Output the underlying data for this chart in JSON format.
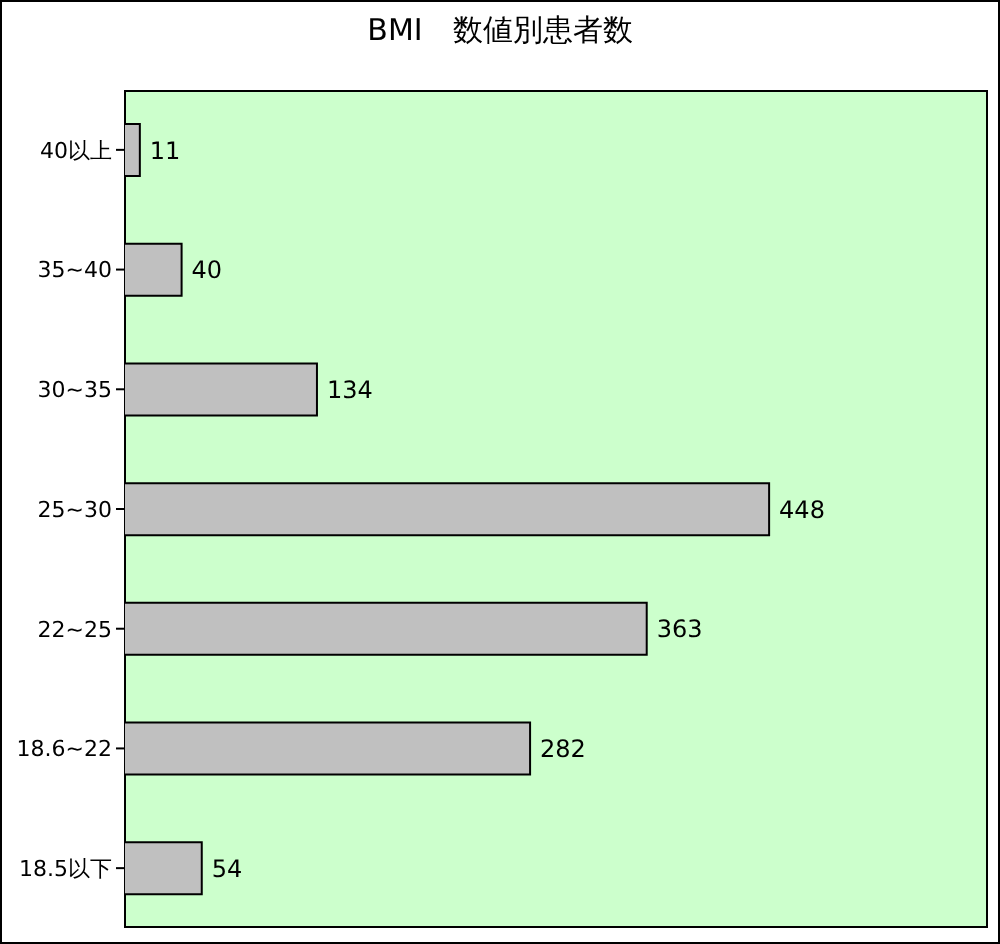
{
  "chart_data": {
    "type": "bar",
    "orientation": "horizontal",
    "title": "BMI　数値別患者数",
    "categories": [
      "40以上",
      "35~40",
      "30~35",
      "25~30",
      "22~25",
      "18.6~22",
      "18.5以下"
    ],
    "values": [
      11,
      40,
      134,
      448,
      363,
      282,
      54
    ],
    "color": "#c0c0c0",
    "data_labels": true
  }
}
